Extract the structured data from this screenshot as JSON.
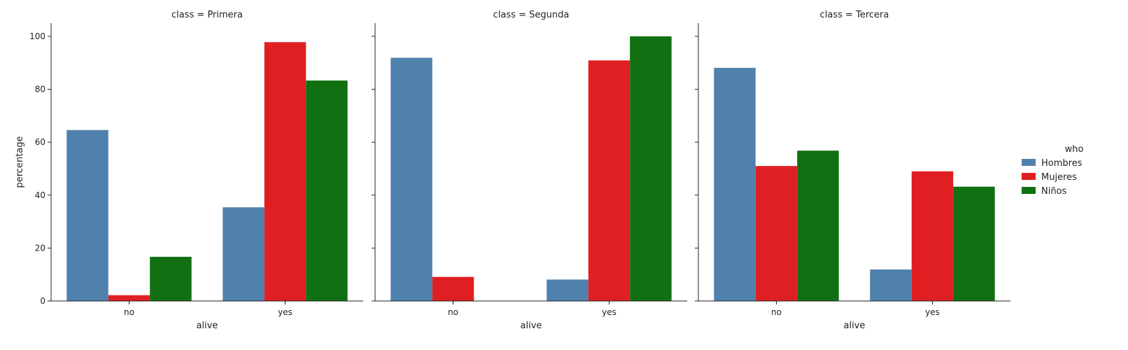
{
  "chart_data": {
    "type": "bar",
    "facet_label_prefix": "class = ",
    "xlabel": "alive",
    "ylabel": "percentage",
    "ylim": [
      0,
      105
    ],
    "yticks": [
      0,
      20,
      40,
      60,
      80,
      100
    ],
    "categories": [
      "no",
      "yes"
    ],
    "legend": {
      "title": "who",
      "placement": "right",
      "entries": [
        {
          "name": "Hombres",
          "color": "#4f81ac"
        },
        {
          "name": "Mujeres",
          "color": "#e01f22"
        },
        {
          "name": "Niños",
          "color": "#117012"
        }
      ]
    },
    "panels": [
      {
        "facet": "Primera",
        "series": [
          {
            "name": "Hombres",
            "values": [
              64.6,
              35.4
            ]
          },
          {
            "name": "Mujeres",
            "values": [
              2.2,
              97.8
            ]
          },
          {
            "name": "Niños",
            "values": [
              16.7,
              83.3
            ]
          }
        ]
      },
      {
        "facet": "Segunda",
        "series": [
          {
            "name": "Hombres",
            "values": [
              91.9,
              8.1
            ]
          },
          {
            "name": "Mujeres",
            "values": [
              9.1,
              90.9
            ]
          },
          {
            "name": "Niños",
            "values": [
              0,
              100
            ]
          }
        ]
      },
      {
        "facet": "Tercera",
        "series": [
          {
            "name": "Hombres",
            "values": [
              88.1,
              11.9
            ]
          },
          {
            "name": "Mujeres",
            "values": [
              51.0,
              49.0
            ]
          },
          {
            "name": "Niños",
            "values": [
              56.8,
              43.2
            ]
          }
        ]
      }
    ]
  }
}
